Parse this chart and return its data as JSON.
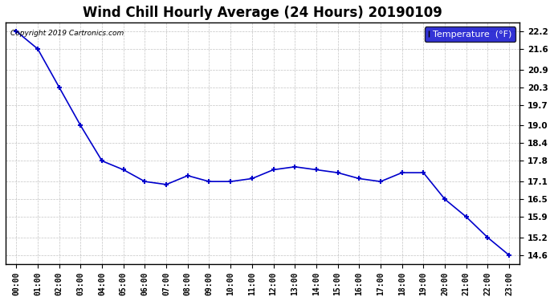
{
  "title": "Wind Chill Hourly Average (24 Hours) 20190109",
  "x_labels": [
    "00:00",
    "01:00",
    "02:00",
    "03:00",
    "04:00",
    "05:00",
    "06:00",
    "07:00",
    "08:00",
    "09:00",
    "10:00",
    "11:00",
    "12:00",
    "13:00",
    "14:00",
    "15:00",
    "16:00",
    "17:00",
    "18:00",
    "19:00",
    "20:00",
    "21:00",
    "22:00",
    "23:00"
  ],
  "y_values": [
    22.2,
    21.6,
    20.3,
    19.0,
    17.8,
    17.5,
    17.1,
    17.0,
    17.3,
    17.1,
    17.1,
    17.2,
    17.5,
    17.6,
    17.5,
    17.4,
    17.2,
    17.1,
    17.4,
    17.4,
    16.5,
    15.9,
    15.2,
    14.6
  ],
  "y_ticks": [
    14.6,
    15.2,
    15.9,
    16.5,
    17.1,
    17.8,
    18.4,
    19.0,
    19.7,
    20.3,
    20.9,
    21.6,
    22.2
  ],
  "y_min": 14.3,
  "y_max": 22.5,
  "line_color": "#0000CC",
  "marker_color": "#0000CC",
  "bg_color": "#ffffff",
  "plot_bg_color": "#ffffff",
  "grid_color": "#aaaaaa",
  "title_fontsize": 12,
  "copyright_text": "Copyright 2019 Cartronics.com",
  "legend_label": "Temperature  (°F)",
  "legend_bg": "#0000CC",
  "legend_text_color": "#ffffff"
}
